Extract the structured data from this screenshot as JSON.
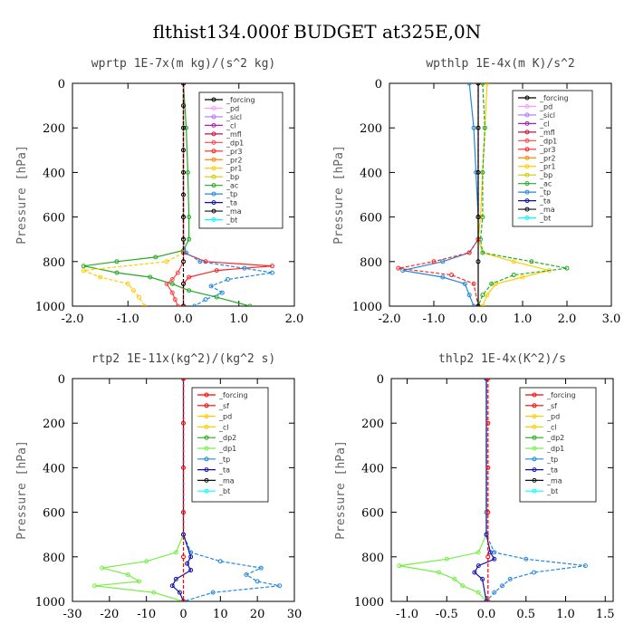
{
  "title": "flthist134.000f  BUDGET at325E,0N",
  "colors": {
    "forcing": "#000000",
    "sf": "#ff0000",
    "pd": "#ff99ff",
    "sicl": "#aa77ff",
    "cl": "#aa22aa",
    "mfl": "#cc1144",
    "dp1": "#ff4444",
    "dp2": "#22aa22",
    "pr3": "#ff2222",
    "pr2": "#ff8800",
    "pr1": "#ffcc00",
    "bp": "#cccc00",
    "ac": "#22aa22",
    "tp": "#2288dd",
    "ta": "#1111aa",
    "ma": "#111111",
    "bt": "#00ffff",
    "dp1_green": "#77ee44"
  },
  "chart_data": [
    {
      "type": "line",
      "title": "wprtp  1E-7x(m kg)/(s^2 kg)",
      "ylabel": "Pressure [hPa]",
      "xlim": [
        -2.0,
        2.0
      ],
      "ylim": [
        1000,
        0
      ],
      "xticks": [
        -2.0,
        -1.0,
        0.0,
        1.0,
        2.0
      ],
      "xtick_labels": [
        "-2.0",
        "-1.0",
        "0.0",
        "1.0",
        "2.0"
      ],
      "yticks": [
        0,
        200,
        400,
        600,
        800,
        1000
      ],
      "legend": [
        "_forcing",
        "_pd",
        "_sicl",
        "_cl",
        "_mfl",
        "_dp1",
        "_pr3",
        "_pr2",
        "_pr1",
        "_bp",
        "_ac",
        "_tp",
        "_ta",
        "_ma",
        "_bt"
      ],
      "legend_colors": [
        "#000000",
        "#ff99ff",
        "#aa77ff",
        "#aa22aa",
        "#cc1144",
        "#ff4444",
        "#ff2222",
        "#ff8800",
        "#ffcc00",
        "#cccc00",
        "#22aa22",
        "#2288dd",
        "#1111aa",
        "#111111",
        "#00ffff"
      ],
      "series": [
        {
          "name": "_ac",
          "color": "#22aa22",
          "y": [
            0,
            200,
            400,
            600,
            700,
            750,
            780,
            800,
            820,
            850,
            870,
            900,
            930,
            960,
            1000
          ],
          "values": [
            0.0,
            0.05,
            0.08,
            0.1,
            0.1,
            0.0,
            -0.5,
            -1.2,
            -1.8,
            -1.2,
            -0.6,
            -0.2,
            0.1,
            0.6,
            1.2
          ]
        },
        {
          "name": "_pr1",
          "color": "#ffcc00",
          "y": [
            0,
            600,
            700,
            760,
            800,
            840,
            870,
            900,
            930,
            960,
            1000
          ],
          "values": [
            0.0,
            0.0,
            0.0,
            0.0,
            -0.3,
            -1.8,
            -1.5,
            -1.0,
            -0.9,
            -0.8,
            -0.7
          ]
        },
        {
          "name": "_pr3",
          "color": "#ff2222",
          "y": [
            0,
            600,
            700,
            760,
            800,
            820,
            840,
            870,
            900,
            1000
          ],
          "values": [
            0.0,
            0.0,
            0.0,
            0.0,
            0.4,
            1.6,
            0.6,
            0.1,
            0.0,
            0.0
          ]
        },
        {
          "name": "_tp",
          "color": "#2288dd",
          "y": [
            0,
            600,
            700,
            760,
            800,
            830,
            850,
            880,
            910,
            940,
            970,
            1000
          ],
          "values": [
            0.0,
            0.0,
            0.0,
            0.05,
            0.3,
            1.1,
            1.6,
            0.8,
            0.5,
            0.7,
            0.4,
            0.2
          ]
        },
        {
          "name": "_dp1",
          "color": "#ff4444",
          "y": [
            0,
            800,
            850,
            880,
            900,
            940,
            970,
            1000
          ],
          "values": [
            0.0,
            0.0,
            -0.1,
            -0.2,
            -0.3,
            -0.2,
            -0.15,
            -0.1
          ]
        },
        {
          "name": "_forcing",
          "color": "#000000",
          "y": [
            0,
            100,
            200,
            300,
            400,
            500,
            600,
            700,
            800,
            900,
            1000
          ],
          "values": [
            0.0,
            0.0,
            0.0,
            0.0,
            0.0,
            0.0,
            0.0,
            0.0,
            0.0,
            0.0,
            0.0
          ]
        }
      ]
    },
    {
      "type": "line",
      "title": "wpthlp  1E-4x(m K)/s^2",
      "ylabel": "Pressure [hPa]",
      "xlim": [
        -2.0,
        3.0
      ],
      "ylim": [
        1000,
        0
      ],
      "xticks": [
        -2.0,
        -1.0,
        0.0,
        1.0,
        2.0,
        3.0
      ],
      "xtick_labels": [
        "-2.0",
        "-1.0",
        "0.0",
        "1.0",
        "2.0",
        "3.0"
      ],
      "yticks": [
        0,
        200,
        400,
        600,
        800,
        1000
      ],
      "legend": [
        "_forcing",
        "_pd",
        "_sicl",
        "_cl",
        "_mfl",
        "_dp1",
        "_pr3",
        "_pr2",
        "_pr1",
        "_bp",
        "_ac",
        "_tp",
        "_ta",
        "_ma",
        "_bt"
      ],
      "legend_colors": [
        "#000000",
        "#ff99ff",
        "#aa77ff",
        "#aa22aa",
        "#cc1144",
        "#ff4444",
        "#ff2222",
        "#ff8800",
        "#ffcc00",
        "#cccc00",
        "#22aa22",
        "#2288dd",
        "#1111aa",
        "#111111",
        "#00ffff"
      ],
      "series": [
        {
          "name": "_pr1",
          "color": "#ffcc00",
          "y": [
            0,
            200,
            400,
            600,
            700,
            760,
            800,
            840,
            870,
            900,
            950,
            1000
          ],
          "values": [
            0.2,
            0.15,
            0.1,
            0.05,
            0.0,
            0.1,
            0.8,
            1.6,
            1.0,
            0.4,
            0.2,
            0.1
          ]
        },
        {
          "name": "_ac",
          "color": "#22aa22",
          "y": [
            0,
            200,
            400,
            600,
            700,
            760,
            800,
            830,
            860,
            900,
            950,
            1000
          ],
          "values": [
            0.1,
            0.15,
            0.1,
            0.1,
            0.05,
            0.1,
            1.2,
            2.0,
            0.8,
            0.3,
            0.1,
            0.0
          ]
        },
        {
          "name": "_tp",
          "color": "#2288dd",
          "y": [
            0,
            200,
            400,
            600,
            700,
            760,
            800,
            840,
            870,
            900,
            950,
            1000
          ],
          "values": [
            -0.2,
            -0.1,
            -0.05,
            0.0,
            0.0,
            -0.2,
            -0.8,
            -1.7,
            -0.8,
            -0.3,
            -0.2,
            -0.1
          ]
        },
        {
          "name": "_pr3",
          "color": "#ff2222",
          "y": [
            0,
            600,
            700,
            760,
            800,
            830,
            860,
            900,
            1000
          ],
          "values": [
            0.0,
            0.0,
            0.0,
            -0.2,
            -1.0,
            -1.8,
            -0.6,
            -0.1,
            0.0
          ]
        },
        {
          "name": "_forcing",
          "color": "#000000",
          "y": [
            0,
            200,
            400,
            600,
            800,
            1000
          ],
          "values": [
            0.0,
            0.0,
            0.0,
            0.0,
            0.0,
            0.0
          ]
        }
      ]
    },
    {
      "type": "line",
      "title": "rtp2  1E-11x(kg^2)/(kg^2 s)",
      "ylabel": "Pressure [hPa]",
      "xlim": [
        -30,
        30
      ],
      "ylim": [
        1000,
        0
      ],
      "xticks": [
        -30,
        -20,
        -10,
        0,
        10,
        20,
        30
      ],
      "xtick_labels": [
        "-30",
        "-20",
        "-10",
        "0",
        "10",
        "20",
        "30"
      ],
      "yticks": [
        0,
        200,
        400,
        600,
        800,
        1000
      ],
      "legend": [
        "_forcing",
        "_sf",
        "_pd",
        "_cl",
        "_dp2",
        "_dp1",
        "_tp",
        "_ta",
        "_ma",
        "_bt"
      ],
      "legend_colors": [
        "#ff0000",
        "#ff0000",
        "#ffcc00",
        "#ffcc00",
        "#22aa22",
        "#77ee44",
        "#2288dd",
        "#1111aa",
        "#111111",
        "#00ffff"
      ],
      "series": [
        {
          "name": "_dp1",
          "color": "#77ee44",
          "y": [
            0,
            600,
            700,
            780,
            820,
            850,
            880,
            910,
            930,
            960,
            1000
          ],
          "values": [
            0.0,
            0.0,
            0.0,
            -2,
            -10,
            -22,
            -15,
            -12,
            -24,
            -8,
            0
          ]
        },
        {
          "name": "_tp",
          "color": "#2288dd",
          "y": [
            0,
            600,
            700,
            780,
            820,
            850,
            880,
            910,
            930,
            960,
            1000
          ],
          "values": [
            0.0,
            0.0,
            0.0,
            2,
            10,
            21,
            17,
            20,
            26,
            8,
            0
          ]
        },
        {
          "name": "_ta",
          "color": "#1111aa",
          "y": [
            0,
            700,
            800,
            830,
            860,
            900,
            930,
            960,
            1000
          ],
          "values": [
            0.0,
            0.0,
            2,
            1,
            2,
            -2,
            -3,
            -1,
            0
          ]
        },
        {
          "name": "_forcing",
          "color": "#ff0000",
          "y": [
            0,
            200,
            400,
            600,
            800,
            1000
          ],
          "values": [
            0,
            0,
            0,
            0,
            0,
            0
          ]
        }
      ]
    },
    {
      "type": "line",
      "title": "thlp2  1E-4x(K^2)/s",
      "ylabel": "Pressure [hPa]",
      "xlim": [
        -1.2,
        1.6
      ],
      "ylim": [
        1000,
        0
      ],
      "xticks": [
        -1.0,
        -0.5,
        0.0,
        0.5,
        1.0,
        1.5
      ],
      "xtick_labels": [
        "-1.0",
        "-0.5",
        "0.0",
        "0.5",
        "1.0",
        "1.5"
      ],
      "yticks": [
        0,
        200,
        400,
        600,
        800,
        1000
      ],
      "legend": [
        "_forcing",
        "_sf",
        "_pd",
        "_cl",
        "_dp2",
        "_dp1",
        "_tp",
        "_ta",
        "_ma",
        "_bt"
      ],
      "legend_colors": [
        "#ff0000",
        "#ff0000",
        "#ffcc00",
        "#ffcc00",
        "#22aa22",
        "#77ee44",
        "#2288dd",
        "#1111aa",
        "#111111",
        "#00ffff"
      ],
      "series": [
        {
          "name": "_dp1",
          "color": "#77ee44",
          "y": [
            0,
            600,
            700,
            780,
            810,
            840,
            870,
            900,
            930,
            960,
            1000
          ],
          "values": [
            0.0,
            0.0,
            0.0,
            -0.1,
            -0.5,
            -1.1,
            -0.6,
            -0.4,
            -0.3,
            -0.1,
            0.0
          ]
        },
        {
          "name": "_tp",
          "color": "#2288dd",
          "y": [
            0,
            600,
            700,
            780,
            810,
            840,
            870,
            900,
            930,
            960,
            1000
          ],
          "values": [
            0.0,
            0.0,
            0.0,
            0.1,
            0.5,
            1.25,
            0.6,
            0.3,
            0.2,
            0.1,
            0.0
          ]
        },
        {
          "name": "_ta",
          "color": "#1111aa",
          "y": [
            0,
            700,
            780,
            810,
            840,
            870,
            900,
            1000
          ],
          "values": [
            0.0,
            0.0,
            0.05,
            0.1,
            -0.1,
            -0.15,
            -0.05,
            0.0
          ]
        },
        {
          "name": "_forcing",
          "color": "#ff0000",
          "y": [
            0,
            200,
            400,
            600,
            800,
            1000
          ],
          "values": [
            0.02,
            0.02,
            0.02,
            0.02,
            0.02,
            0.02
          ]
        }
      ]
    }
  ]
}
